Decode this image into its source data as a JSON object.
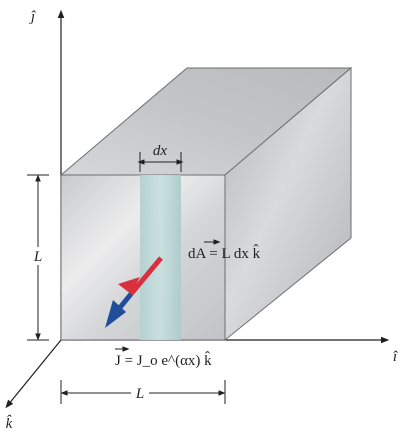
{
  "axes": {
    "j_label": "ĵ",
    "i_label": "î",
    "k_label": "k̂"
  },
  "labels": {
    "dx": "dx",
    "L_left": "L",
    "L_bottom": "L",
    "dA_equation": "dA = L dx k̂",
    "J_equation": "J = J_o e^(αx) k̂"
  },
  "colors": {
    "box_front": "#d8d9db",
    "box_top": "#c8c9cb",
    "box_side": "#bfc0c2",
    "strip": "#bcd7d7",
    "arrow_red": "#d9303e",
    "arrow_blue": "#1f4e9a",
    "line": "#231f20"
  },
  "icons": {
    "current_arrow": "arrow-down-left-icon"
  }
}
